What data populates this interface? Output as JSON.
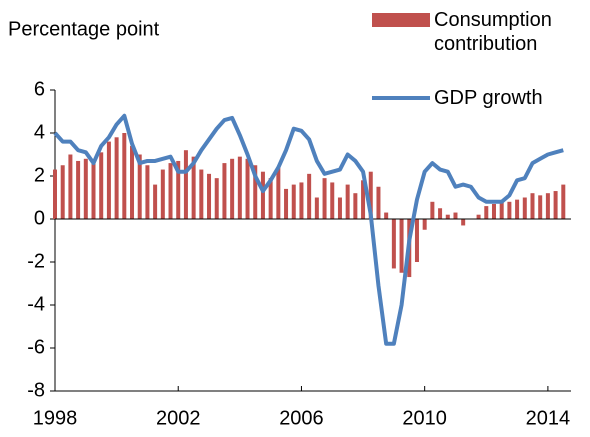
{
  "chart_data": {
    "type": "bar_line",
    "y_label": "Percentage point",
    "x": [
      1998.0,
      1998.25,
      1998.5,
      1998.75,
      1999.0,
      1999.25,
      1999.5,
      1999.75,
      2000.0,
      2000.25,
      2000.5,
      2000.75,
      2001.0,
      2001.25,
      2001.5,
      2001.75,
      2002.0,
      2002.25,
      2002.5,
      2002.75,
      2003.0,
      2003.25,
      2003.5,
      2003.75,
      2004.0,
      2004.25,
      2004.5,
      2004.75,
      2005.0,
      2005.25,
      2005.5,
      2005.75,
      2006.0,
      2006.25,
      2006.5,
      2006.75,
      2007.0,
      2007.25,
      2007.5,
      2007.75,
      2008.0,
      2008.25,
      2008.5,
      2008.75,
      2009.0,
      2009.25,
      2009.5,
      2009.75,
      2010.0,
      2010.25,
      2010.5,
      2010.75,
      2011.0,
      2011.25,
      2011.5,
      2011.75,
      2012.0,
      2012.25,
      2012.5,
      2012.75,
      2013.0,
      2013.25,
      2013.5,
      2013.75,
      2014.0,
      2014.25,
      2014.5
    ],
    "series": [
      {
        "name": "Consumption contribution",
        "kind": "bar",
        "color": "#c0504d",
        "values": [
          2.3,
          2.5,
          3.0,
          2.7,
          2.8,
          2.6,
          3.1,
          3.6,
          3.8,
          4.0,
          3.4,
          3.0,
          2.5,
          1.6,
          2.3,
          2.6,
          2.7,
          3.2,
          2.9,
          2.3,
          2.1,
          1.9,
          2.6,
          2.8,
          2.9,
          2.8,
          2.5,
          2.2,
          1.9,
          2.4,
          1.4,
          1.6,
          1.7,
          2.1,
          1.0,
          1.9,
          1.7,
          1.0,
          1.6,
          1.2,
          1.8,
          2.2,
          1.5,
          0.3,
          -2.3,
          -2.5,
          -2.7,
          -2.0,
          -0.5,
          0.8,
          0.5,
          0.2,
          0.3,
          -0.3,
          0.0,
          0.2,
          0.6,
          0.7,
          0.8,
          0.8,
          0.9,
          1.0,
          1.2,
          1.1,
          1.2,
          1.3,
          1.6
        ]
      },
      {
        "name": "GDP growth",
        "kind": "line",
        "color": "#4f81bd",
        "values": [
          4.0,
          3.6,
          3.6,
          3.2,
          3.1,
          2.6,
          3.4,
          3.8,
          4.4,
          4.8,
          3.5,
          2.6,
          2.7,
          2.7,
          2.8,
          2.9,
          2.2,
          2.2,
          2.6,
          3.2,
          3.7,
          4.2,
          4.6,
          4.7,
          3.9,
          3.0,
          2.0,
          1.3,
          1.8,
          2.4,
          3.2,
          4.2,
          4.1,
          3.7,
          2.7,
          2.1,
          2.2,
          2.3,
          3.0,
          2.7,
          2.2,
          0.2,
          -3.1,
          -5.8,
          -5.8,
          -4.0,
          -1.0,
          0.9,
          2.2,
          2.6,
          2.3,
          2.2,
          1.5,
          1.6,
          1.5,
          1.0,
          0.8,
          0.8,
          0.8,
          1.1,
          1.8,
          1.9,
          2.6,
          2.8,
          3.0,
          3.1,
          3.2
        ]
      }
    ],
    "xlim": [
      1998,
      2014.75
    ],
    "xticks": [
      1998,
      2002,
      2006,
      2010,
      2014
    ],
    "ylim": [
      -8,
      6
    ],
    "yticks": [
      -8,
      -6,
      -4,
      -2,
      0,
      2,
      4,
      6
    ],
    "legend": "top-right",
    "grid": false
  }
}
